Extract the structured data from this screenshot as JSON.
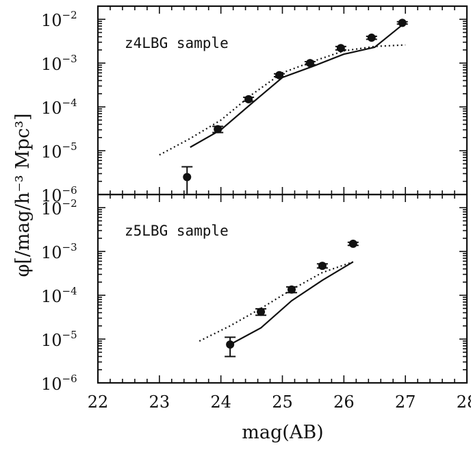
{
  "chart_data": [
    {
      "type": "scatter",
      "panel_label": "z4LBG sample",
      "xlabel": "mag(AB)",
      "ylabel": "φ[/mag/h⁻³ Mpc³]",
      "xlim": [
        22,
        28
      ],
      "ylim_log10": [
        -6,
        -1.7
      ],
      "y_scale": "log",
      "x_ticks": [
        "22",
        "23",
        "24",
        "25",
        "26",
        "27",
        "28"
      ],
      "y_ticks": [
        {
          "base": "10",
          "exp": "−2"
        },
        {
          "base": "10",
          "exp": "−3"
        },
        {
          "base": "10",
          "exp": "−4"
        },
        {
          "base": "10",
          "exp": "−5"
        },
        {
          "base": "10",
          "exp": "−6"
        }
      ],
      "series": [
        {
          "kind": "points",
          "x": [
            23.45,
            23.95,
            24.45,
            24.95,
            25.45,
            25.95,
            26.45,
            26.95
          ],
          "y": [
            2.5e-06,
            3.1e-05,
            0.00015,
            0.00053,
            0.001,
            0.0022,
            0.0038,
            0.0083
          ],
          "y_err_low": [
            1.5e-06,
            5e-06,
            1.5e-05,
            4e-05,
            8e-05,
            0.0002,
            0.0003,
            0.0005
          ],
          "y_err_high": [
            1.8e-06,
            5e-06,
            1.5e-05,
            4e-05,
            8e-05,
            0.0002,
            0.0003,
            0.0005
          ]
        },
        {
          "kind": "solid",
          "x": [
            23.5,
            24.0,
            24.5,
            25.0,
            25.5,
            26.0,
            26.5,
            27.0
          ],
          "y": [
            1.2e-05,
            3e-05,
            0.00012,
            0.00047,
            0.00085,
            0.0016,
            0.0023,
            0.0085
          ]
        },
        {
          "kind": "dotted",
          "x": [
            23.0,
            23.5,
            24.0,
            24.5,
            25.0,
            25.5,
            26.0,
            26.5,
            27.0
          ],
          "y": [
            8e-06,
            1.9e-05,
            5e-05,
            0.00019,
            0.0006,
            0.0011,
            0.0019,
            0.0024,
            0.0026
          ]
        }
      ]
    },
    {
      "type": "scatter",
      "panel_label": "z5LBG sample",
      "xlabel": "mag(AB)",
      "xlim": [
        22,
        28
      ],
      "ylim_log10": [
        -6,
        -1.7
      ],
      "y_scale": "log",
      "x_ticks": [
        "22",
        "23",
        "24",
        "25",
        "26",
        "27",
        "28"
      ],
      "y_ticks": [
        {
          "base": "10",
          "exp": "−2"
        },
        {
          "base": "10",
          "exp": "−3"
        },
        {
          "base": "10",
          "exp": "−4"
        },
        {
          "base": "10",
          "exp": "−5"
        },
        {
          "base": "10",
          "exp": "−6"
        }
      ],
      "series": [
        {
          "kind": "points",
          "x": [
            24.15,
            24.65,
            25.15,
            25.65,
            26.15
          ],
          "y": [
            7.5e-06,
            4.2e-05,
            0.000135,
            0.00047,
            0.0015
          ],
          "y_err_low": [
            3.5e-06,
            7e-06,
            2e-05,
            5e-05,
            0.00012
          ],
          "y_err_high": [
            3.5e-06,
            7e-06,
            2e-05,
            5e-05,
            0.00012
          ]
        },
        {
          "kind": "solid",
          "x": [
            24.15,
            24.65,
            25.15,
            25.65,
            26.15
          ],
          "y": [
            7.5e-06,
            1.8e-05,
            7.5e-05,
            0.00022,
            0.00058
          ]
        },
        {
          "kind": "dotted",
          "x": [
            23.65,
            24.15,
            24.65,
            25.15,
            25.65,
            26.15
          ],
          "y": [
            9e-06,
            2e-05,
            5e-05,
            0.000135,
            0.00033,
            0.00058
          ]
        }
      ]
    }
  ]
}
